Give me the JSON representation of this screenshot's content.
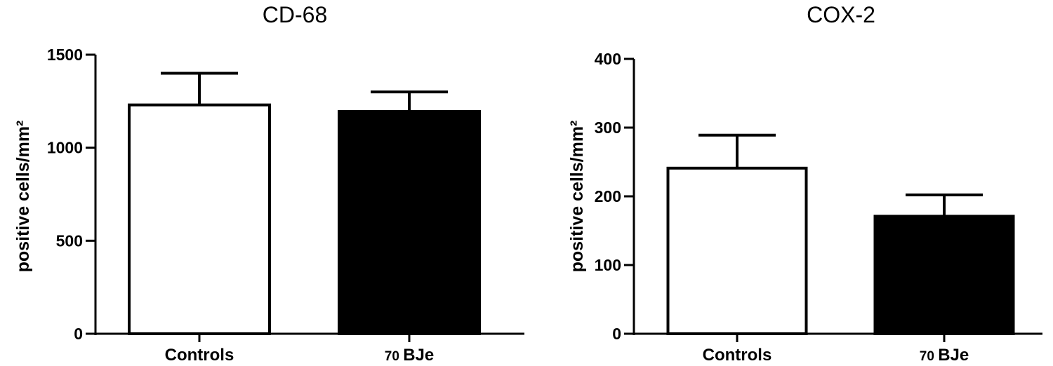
{
  "chart_data": [
    {
      "type": "bar",
      "title": "CD-68",
      "ylabel": "positive cells/mm²",
      "xlabel": "",
      "categories": [
        "Controls",
        "70 BJe"
      ],
      "values": [
        1230,
        1195
      ],
      "error": [
        170,
        105
      ],
      "ylim": [
        0,
        1500
      ],
      "yticks": [
        0,
        500,
        1000,
        1500
      ],
      "fills": [
        "#ffffff",
        "#000000"
      ],
      "grid": false
    },
    {
      "type": "bar",
      "title": "COX-2",
      "ylabel": "positive cells/mm²",
      "xlabel": "",
      "categories": [
        "Controls",
        "70 BJe"
      ],
      "values": [
        241,
        171
      ],
      "error": [
        48,
        31
      ],
      "ylim": [
        0,
        400
      ],
      "yticks": [
        0,
        100,
        200,
        300,
        400
      ],
      "fills": [
        "#ffffff",
        "#000000"
      ],
      "grid": false
    }
  ]
}
